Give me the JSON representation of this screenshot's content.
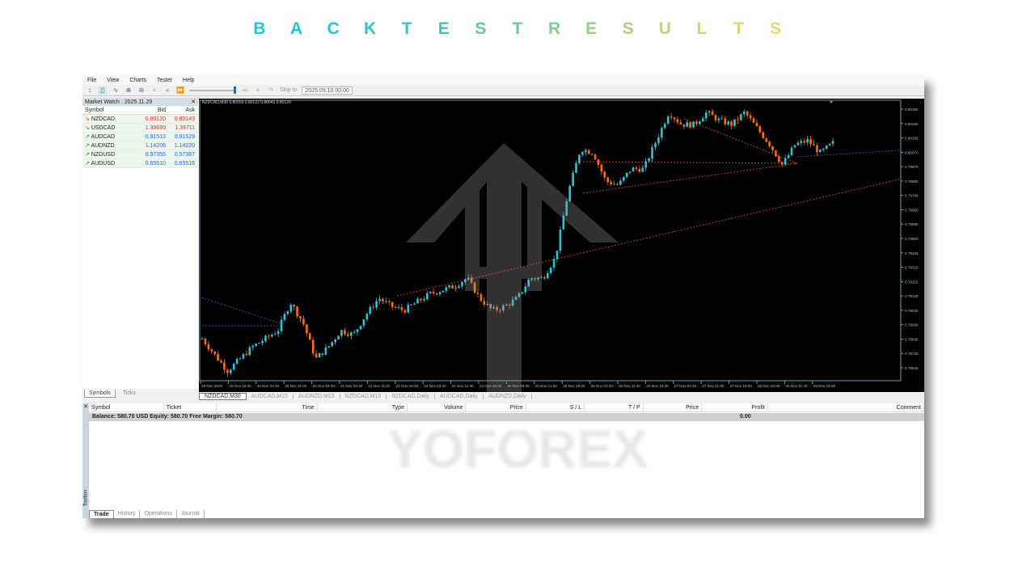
{
  "title": {
    "letters": [
      "B",
      "A",
      "C",
      "K",
      "T",
      "E",
      "S",
      "T",
      "R",
      "E",
      "S",
      "U",
      "L",
      "T",
      "S"
    ],
    "colors": [
      "#1ec8e0",
      "#1fc7da",
      "#26c6d2",
      "#2fc5c8",
      "#3cc5bd",
      "#4ac5b2",
      "#5dc7a7",
      "#70c99e",
      "#84cb95",
      "#98cd8c",
      "#accf84",
      "#c1d27c",
      "#d2d476",
      "#e0d56f",
      "#f0d66a"
    ]
  },
  "menu": [
    "File",
    "View",
    "Charts",
    "Tester",
    "Help"
  ],
  "toolbar": {
    "skip_label": "Skip to",
    "skip_date": "2025.09.10 00:00"
  },
  "market_watch": {
    "title": "Market Watch : 2025.11.29",
    "headers": [
      "Symbol",
      "Bid",
      "Ask"
    ],
    "rows": [
      {
        "symbol": "NZDCAD",
        "bid": "0.80120",
        "ask": "0.80143",
        "dir": "down"
      },
      {
        "symbol": "USDCAD",
        "bid": "1.39699",
        "ask": "1.39711",
        "dir": "down"
      },
      {
        "symbol": "AUDCAD",
        "bid": "0.91513",
        "ask": "0.91529",
        "dir": "up"
      },
      {
        "symbol": "AUDNZD",
        "bid": "1.14206",
        "ask": "1.14220",
        "dir": "up"
      },
      {
        "symbol": "NZDUSD",
        "bid": "0.57355",
        "ask": "0.57367",
        "dir": "up"
      },
      {
        "symbol": "AUDUSD",
        "bid": "0.65510",
        "ask": "0.65516",
        "dir": "up"
      }
    ],
    "tabs": [
      "Symbols",
      "Ticks"
    ]
  },
  "chart": {
    "info": "NZDCAD,M30  0.80059 0.80122 0.80042 0.80120",
    "price_labels": [
      "0.80355",
      "0.80260",
      "0.80165",
      "0.80070",
      "0.79975",
      "0.79880",
      "0.79785",
      "0.79690",
      "0.79595",
      "0.79500",
      "0.79405",
      "0.79310",
      "0.79215",
      "0.79120",
      "0.79025",
      "0.78930",
      "0.78835",
      "0.78740",
      "0.78645"
    ],
    "time_labels": [
      "19 Nov 2025",
      "19 Nov 19:30",
      "20 Nov 03:30",
      "20 Nov 11:30",
      "20 Nov 19:30",
      "21 Nov 03:30",
      "21 Nov 11:30",
      "21 Nov 19:30",
      "24 Nov 03:30",
      "24 Nov 11:30",
      "24 Nov 19:30",
      "25 Nov 03:30",
      "25 Nov 11:30",
      "25 Nov 19:30",
      "26 Nov 03:30",
      "26 Nov 11:30",
      "26 Nov 19:30",
      "27 Nov 03:30",
      "27 Nov 11:30",
      "27 Nov 19:30",
      "28 Nov 03:30",
      "28 Nov 11:30",
      "28 Nov 19:30"
    ],
    "close_path": [
      0.78837,
      0.78731,
      0.78624,
      0.78704,
      0.78784,
      0.78837,
      0.78891,
      0.79078,
      0.78944,
      0.78704,
      0.78784,
      0.78891,
      0.78864,
      0.78998,
      0.79105,
      0.79051,
      0.79024,
      0.79078,
      0.79131,
      0.79158,
      0.79185,
      0.79238,
      0.79105,
      0.79024,
      0.79051,
      0.79105,
      0.79238,
      0.79238,
      0.79372,
      0.79799,
      0.80093,
      0.80066,
      0.79879,
      0.79853,
      0.7996,
      0.7996,
      0.80147,
      0.80334,
      0.80253,
      0.80253,
      0.80334,
      0.8028,
      0.80253,
      0.80334,
      0.80227,
      0.8012,
      0.79986,
      0.8012,
      0.80147,
      0.80066,
      0.80131
    ],
    "colors": {
      "bull": "#26c6da",
      "bear": "#ff6d00",
      "axis": "#6fa0a0",
      "line_red": "#c0392b",
      "line_blue": "#1e5aa0"
    }
  },
  "chart_tabs": [
    "NZDCAD,M30",
    "AUDCAD,M15",
    "AUDNZD,M15",
    "NZDCAD,M15",
    "NZDCAD,Daily",
    "AUDCAD,Daily",
    "AUDNZD,Daily"
  ],
  "toolbox": {
    "side_label": "Toolbox",
    "headers": [
      "Symbol",
      "Ticket",
      "Time",
      "Type",
      "Volume",
      "Price",
      "S / L",
      "T / P",
      "Price",
      "Profit",
      "Comment"
    ],
    "balance": "Balance: 580.70 USD  Equity: 580.70  Free Margin: 580.70",
    "profit": "0.00",
    "tabs": [
      "Trade",
      "History",
      "Operations",
      "Journal"
    ]
  },
  "watermark": {
    "text": "YOFOREX"
  }
}
